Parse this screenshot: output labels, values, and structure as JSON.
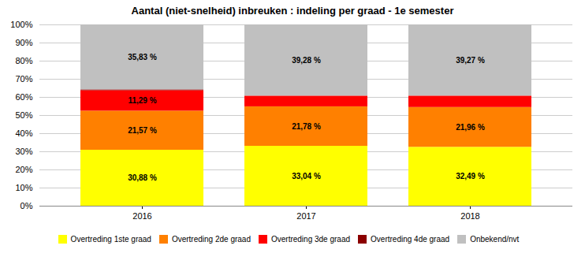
{
  "chart_data": {
    "type": "bar",
    "stacked": true,
    "title": "Aantal (niet-snelheid) inbreuken : indeling per graad - 1e semester",
    "categories": [
      "2016",
      "2017",
      "2018"
    ],
    "series": [
      {
        "name": "Overtreding 1ste graad",
        "color": "#FFFF00",
        "values": [
          30.88,
          33.04,
          32.49
        ],
        "value_labels": [
          "30,88 %",
          "33,04 %",
          "32,49 %"
        ]
      },
      {
        "name": "Overtreding 2de graad",
        "color": "#FF8000",
        "values": [
          21.57,
          21.78,
          21.96
        ],
        "value_labels": [
          "21,57 %",
          "21,78 %",
          "21,96 %"
        ]
      },
      {
        "name": "Overtreding 3de graad",
        "color": "#FF0000",
        "values": [
          11.29,
          5.9,
          6.28
        ],
        "value_labels": [
          "11,29 %",
          null,
          null
        ]
      },
      {
        "name": "Overtreding 4de graad",
        "color": "#8B0000",
        "values": [
          0.43,
          0.0,
          0.0
        ],
        "value_labels": [
          null,
          null,
          null
        ]
      },
      {
        "name": "Onbekend/nvt",
        "color": "#C0C0C0",
        "values": [
          35.83,
          39.28,
          39.27
        ],
        "value_labels": [
          "35,83 %",
          "39,28 %",
          "39,27 %"
        ]
      }
    ],
    "ylim": [
      0,
      100
    ],
    "yticks": [
      {
        "value": 0,
        "label": "0%"
      },
      {
        "value": 10,
        "label": "10%"
      },
      {
        "value": 20,
        "label": "20%"
      },
      {
        "value": 30,
        "label": "30%"
      },
      {
        "value": 40,
        "label": "40%"
      },
      {
        "value": 50,
        "label": "50%"
      },
      {
        "value": 60,
        "label": "60%"
      },
      {
        "value": 70,
        "label": "70%"
      },
      {
        "value": 80,
        "label": "80%"
      },
      {
        "value": 90,
        "label": "90%"
      },
      {
        "value": 100,
        "label": "100%"
      }
    ],
    "grid": true,
    "legend": "bottom",
    "data_labels": true
  }
}
